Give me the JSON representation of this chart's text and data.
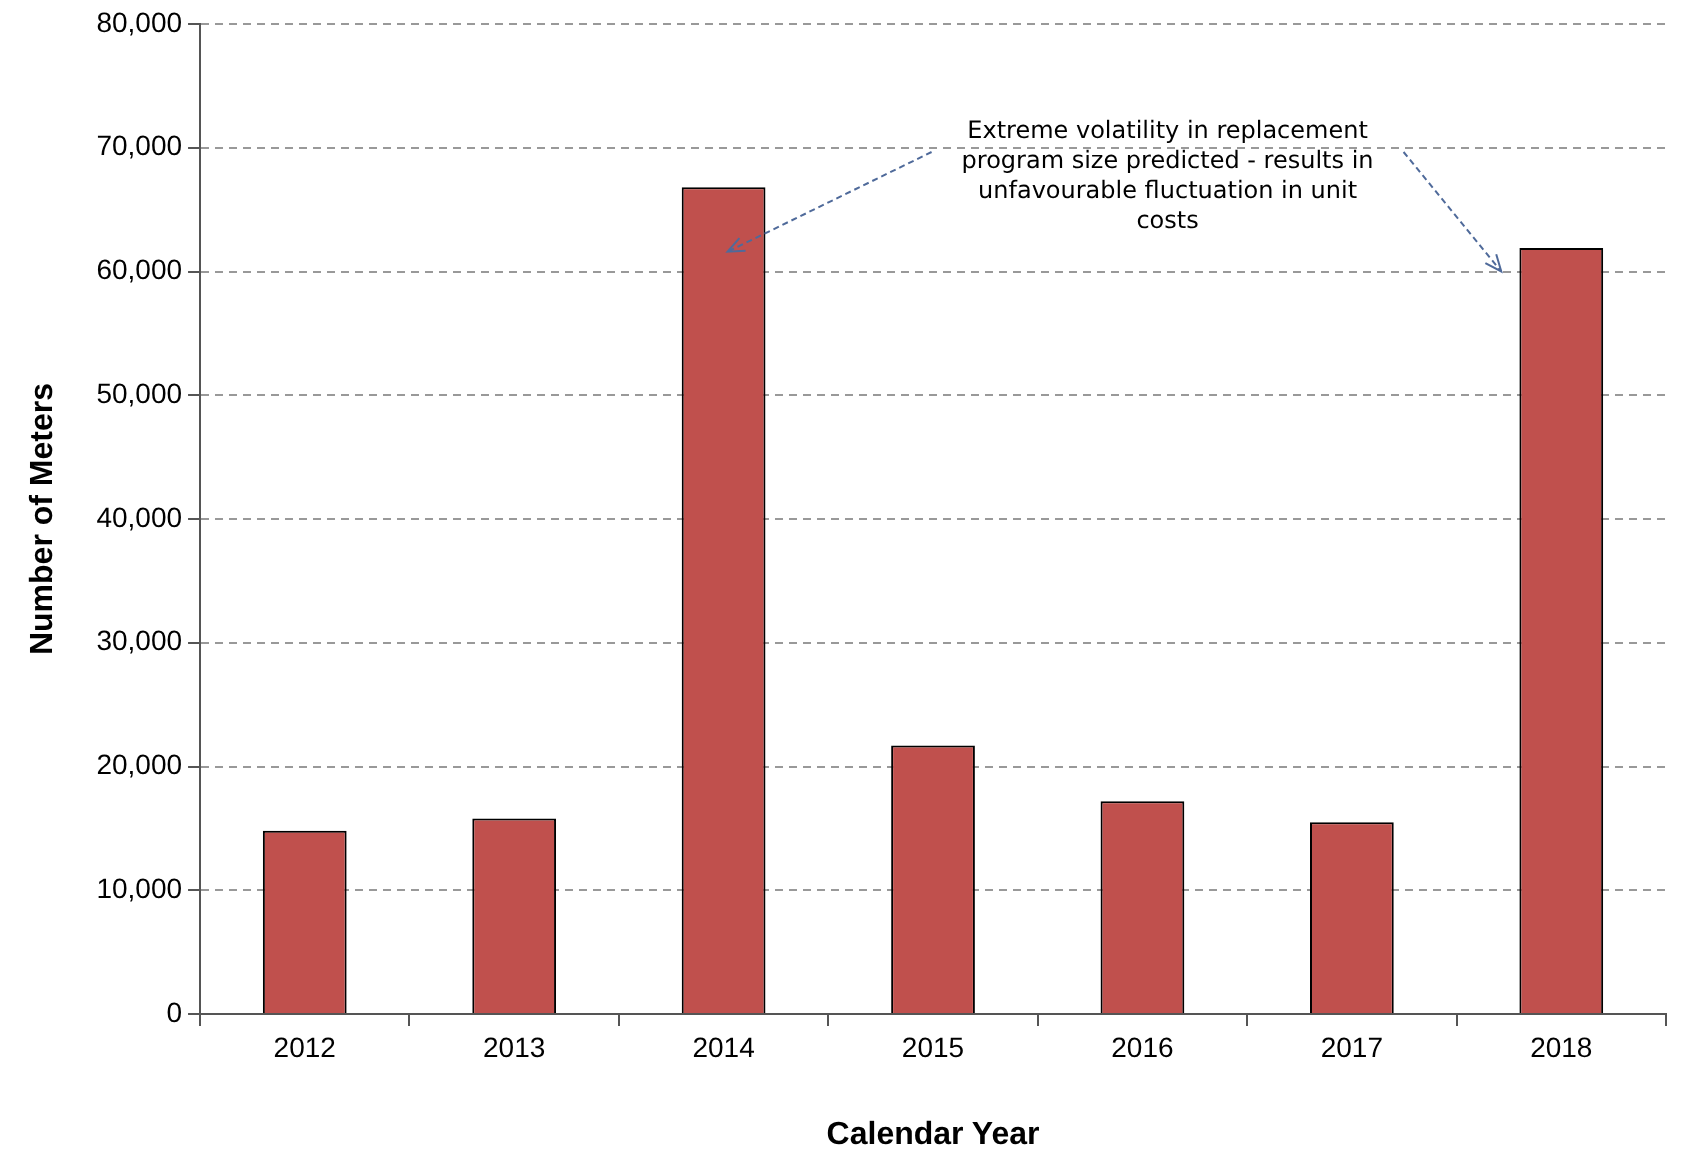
{
  "chart_data": {
    "type": "bar",
    "xlabel": "Calendar Year",
    "ylabel": "Number of Meters",
    "categories": [
      "2012",
      "2013",
      "2014",
      "2015",
      "2016",
      "2017",
      "2018"
    ],
    "values": [
      14800,
      15800,
      66800,
      21700,
      17200,
      15500,
      61900
    ],
    "color": "#c0504d",
    "ylim": [
      0,
      80000
    ],
    "yticks": [
      {
        "value": 0,
        "label": "0"
      },
      {
        "value": 10000,
        "label": "10,000"
      },
      {
        "value": 20000,
        "label": "20,000"
      },
      {
        "value": 30000,
        "label": "30,000"
      },
      {
        "value": 40000,
        "label": "40,000"
      },
      {
        "value": 50000,
        "label": "50,000"
      },
      {
        "value": 60000,
        "label": "60,000"
      },
      {
        "value": 70000,
        "label": "70,000"
      },
      {
        "value": 80000,
        "label": "80,000"
      }
    ],
    "grid": "y",
    "legend": false,
    "annotations": [
      "Extreme volatility in replacement program size predicted - results in unfavourable fluctuation in unit costs"
    ]
  }
}
